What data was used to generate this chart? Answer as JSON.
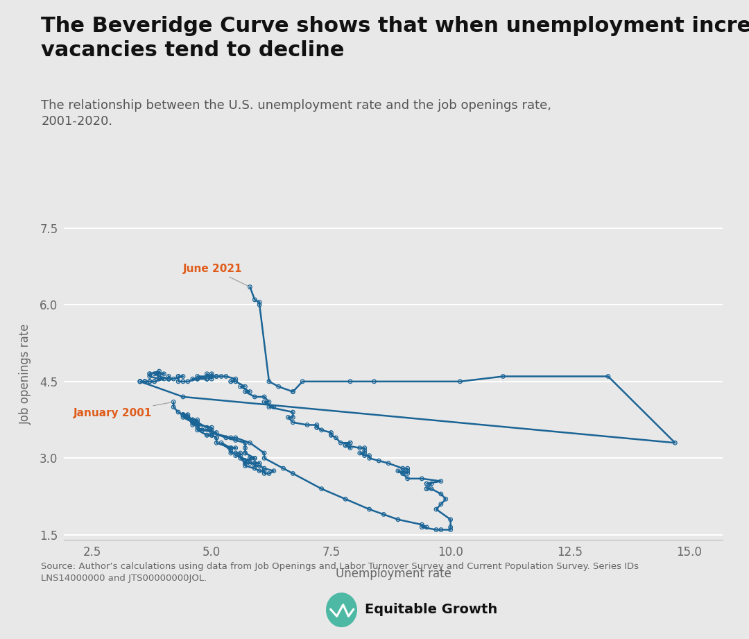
{
  "title_line1": "The Beveridge Curve shows that when unemployment increases, job",
  "title_line2": "vacancies tend to decline",
  "subtitle": "The relationship between the U.S. unemployment rate and the job openings rate,\n2001-2020.",
  "xlabel": "Unemployment rate",
  "ylabel": "Job openings rate",
  "source": "Source: Author’s calculations using data from Job Openings and Labor Turnover Survey and Current Population Survey. Series IDs\nLNS14000000 and JTS00000000JOL.",
  "background_color": "#e8e8e8",
  "line_color": "#1a6496",
  "scatter_edge_color": "#1a6496",
  "annotation_color": "#e05c1a",
  "xlim": [
    1.9,
    15.7
  ],
  "ylim": [
    1.4,
    7.9
  ],
  "xticks": [
    2.5,
    5.0,
    7.5,
    10.0,
    12.5,
    15.0
  ],
  "yticks": [
    1.5,
    3.0,
    4.5,
    6.0,
    7.5
  ],
  "title_fontsize": 22,
  "subtitle_fontsize": 13,
  "label_fontsize": 12,
  "tick_fontsize": 12,
  "jan2001_label": "January 2001",
  "june2021_label": "June 2021",
  "beveridge_data": [
    [
      4.2,
      4.1
    ],
    [
      4.2,
      4.0
    ],
    [
      4.3,
      3.9
    ],
    [
      4.5,
      3.8
    ],
    [
      4.4,
      3.85
    ],
    [
      4.5,
      3.8
    ],
    [
      4.6,
      3.75
    ],
    [
      4.9,
      3.6
    ],
    [
      5.0,
      3.5
    ],
    [
      5.3,
      3.4
    ],
    [
      5.5,
      3.35
    ],
    [
      5.7,
      3.3
    ],
    [
      5.7,
      3.2
    ],
    [
      5.7,
      3.1
    ],
    [
      5.7,
      3.1
    ],
    [
      5.9,
      3.0
    ],
    [
      5.8,
      3.0
    ],
    [
      5.8,
      3.0
    ],
    [
      5.9,
      3.0
    ],
    [
      5.7,
      2.95
    ],
    [
      5.7,
      2.95
    ],
    [
      5.7,
      2.9
    ],
    [
      5.9,
      2.9
    ],
    [
      6.0,
      2.9
    ],
    [
      5.8,
      2.9
    ],
    [
      5.9,
      2.9
    ],
    [
      5.9,
      2.85
    ],
    [
      6.0,
      2.85
    ],
    [
      6.1,
      2.8
    ],
    [
      6.3,
      2.75
    ],
    [
      6.2,
      2.7
    ],
    [
      6.1,
      2.7
    ],
    [
      6.1,
      2.75
    ],
    [
      6.0,
      2.75
    ],
    [
      5.9,
      2.8
    ],
    [
      5.7,
      2.85
    ],
    [
      5.7,
      2.9
    ],
    [
      5.6,
      3.0
    ],
    [
      5.8,
      2.95
    ],
    [
      5.5,
      3.05
    ],
    [
      5.6,
      3.05
    ],
    [
      5.6,
      3.1
    ],
    [
      5.5,
      3.1
    ],
    [
      5.4,
      3.1
    ],
    [
      5.4,
      3.2
    ],
    [
      5.5,
      3.2
    ],
    [
      5.4,
      3.2
    ],
    [
      5.4,
      3.15
    ],
    [
      5.2,
      3.3
    ],
    [
      5.4,
      3.2
    ],
    [
      5.1,
      3.3
    ],
    [
      5.1,
      3.4
    ],
    [
      5.1,
      3.4
    ],
    [
      5.0,
      3.45
    ],
    [
      5.0,
      3.45
    ],
    [
      4.9,
      3.45
    ],
    [
      5.0,
      3.45
    ],
    [
      5.0,
      3.45
    ],
    [
      5.0,
      3.45
    ],
    [
      4.9,
      3.45
    ],
    [
      4.7,
      3.55
    ],
    [
      4.8,
      3.55
    ],
    [
      4.7,
      3.6
    ],
    [
      4.7,
      3.65
    ],
    [
      4.6,
      3.65
    ],
    [
      4.6,
      3.7
    ],
    [
      4.7,
      3.65
    ],
    [
      4.7,
      3.65
    ],
    [
      4.6,
      3.7
    ],
    [
      4.4,
      3.8
    ],
    [
      4.5,
      3.8
    ],
    [
      4.4,
      3.85
    ],
    [
      4.6,
      3.75
    ],
    [
      4.5,
      3.8
    ],
    [
      4.4,
      3.85
    ],
    [
      4.5,
      3.85
    ],
    [
      4.4,
      3.85
    ],
    [
      4.6,
      3.75
    ],
    [
      4.7,
      3.75
    ],
    [
      4.6,
      3.7
    ],
    [
      4.7,
      3.7
    ],
    [
      4.7,
      3.7
    ],
    [
      4.7,
      3.65
    ],
    [
      5.0,
      3.6
    ],
    [
      5.0,
      3.55
    ],
    [
      4.8,
      3.55
    ],
    [
      5.1,
      3.5
    ],
    [
      5.0,
      3.5
    ],
    [
      5.4,
      3.4
    ],
    [
      5.5,
      3.4
    ],
    [
      5.8,
      3.3
    ],
    [
      6.1,
      3.1
    ],
    [
      6.1,
      3.0
    ],
    [
      6.5,
      2.8
    ],
    [
      6.7,
      2.7
    ],
    [
      7.3,
      2.4
    ],
    [
      7.8,
      2.2
    ],
    [
      8.3,
      2.0
    ],
    [
      8.6,
      1.9
    ],
    [
      8.9,
      1.8
    ],
    [
      9.4,
      1.7
    ],
    [
      9.5,
      1.65
    ],
    [
      9.4,
      1.65
    ],
    [
      9.7,
      1.6
    ],
    [
      9.8,
      1.6
    ],
    [
      10.0,
      1.6
    ],
    [
      10.0,
      1.65
    ],
    [
      10.0,
      1.8
    ],
    [
      9.7,
      2.0
    ],
    [
      9.8,
      2.1
    ],
    [
      9.9,
      2.2
    ],
    [
      9.8,
      2.3
    ],
    [
      9.6,
      2.4
    ],
    [
      9.5,
      2.4
    ],
    [
      9.5,
      2.4
    ],
    [
      9.6,
      2.5
    ],
    [
      9.5,
      2.5
    ],
    [
      9.5,
      2.5
    ],
    [
      9.8,
      2.55
    ],
    [
      9.4,
      2.6
    ],
    [
      9.1,
      2.6
    ],
    [
      9.0,
      2.7
    ],
    [
      8.9,
      2.75
    ],
    [
      9.0,
      2.7
    ],
    [
      9.0,
      2.75
    ],
    [
      9.1,
      2.7
    ],
    [
      9.1,
      2.75
    ],
    [
      9.1,
      2.75
    ],
    [
      9.1,
      2.8
    ],
    [
      9.0,
      2.8
    ],
    [
      8.7,
      2.9
    ],
    [
      8.5,
      2.95
    ],
    [
      8.3,
      3.0
    ],
    [
      8.3,
      3.05
    ],
    [
      8.2,
      3.05
    ],
    [
      8.1,
      3.1
    ],
    [
      8.2,
      3.1
    ],
    [
      8.2,
      3.15
    ],
    [
      8.2,
      3.2
    ],
    [
      8.1,
      3.2
    ],
    [
      7.8,
      3.25
    ],
    [
      7.9,
      3.2
    ],
    [
      7.8,
      3.25
    ],
    [
      7.9,
      3.3
    ],
    [
      7.9,
      3.3
    ],
    [
      7.7,
      3.3
    ],
    [
      7.6,
      3.4
    ],
    [
      7.5,
      3.45
    ],
    [
      7.5,
      3.45
    ],
    [
      7.5,
      3.5
    ],
    [
      7.3,
      3.55
    ],
    [
      7.2,
      3.6
    ],
    [
      7.2,
      3.6
    ],
    [
      7.2,
      3.65
    ],
    [
      7.0,
      3.65
    ],
    [
      6.7,
      3.7
    ],
    [
      6.6,
      3.8
    ],
    [
      6.7,
      3.8
    ],
    [
      6.7,
      3.9
    ],
    [
      6.2,
      4.0
    ],
    [
      6.3,
      4.0
    ],
    [
      6.1,
      4.1
    ],
    [
      6.2,
      4.1
    ],
    [
      6.1,
      4.2
    ],
    [
      5.9,
      4.2
    ],
    [
      5.7,
      4.3
    ],
    [
      5.8,
      4.3
    ],
    [
      5.6,
      4.4
    ],
    [
      5.7,
      4.4
    ],
    [
      5.5,
      4.5
    ],
    [
      5.4,
      4.5
    ],
    [
      5.4,
      4.5
    ],
    [
      5.5,
      4.55
    ],
    [
      5.3,
      4.6
    ],
    [
      5.2,
      4.6
    ],
    [
      5.1,
      4.6
    ],
    [
      5.1,
      4.6
    ],
    [
      5.0,
      4.6
    ],
    [
      5.0,
      4.65
    ],
    [
      5.0,
      4.6
    ],
    [
      4.9,
      4.6
    ],
    [
      4.9,
      4.65
    ],
    [
      5.0,
      4.55
    ],
    [
      5.0,
      4.6
    ],
    [
      4.7,
      4.6
    ],
    [
      4.9,
      4.55
    ],
    [
      4.9,
      4.55
    ],
    [
      4.9,
      4.55
    ],
    [
      4.9,
      4.55
    ],
    [
      4.9,
      4.55
    ],
    [
      4.6,
      4.55
    ],
    [
      4.7,
      4.55
    ],
    [
      4.7,
      4.55
    ],
    [
      4.7,
      4.55
    ],
    [
      4.5,
      4.5
    ],
    [
      4.4,
      4.5
    ],
    [
      4.3,
      4.5
    ],
    [
      4.3,
      4.6
    ],
    [
      4.3,
      4.6
    ],
    [
      4.4,
      4.6
    ],
    [
      4.2,
      4.55
    ],
    [
      4.1,
      4.55
    ],
    [
      4.1,
      4.6
    ],
    [
      4.1,
      4.55
    ],
    [
      4.1,
      4.55
    ],
    [
      4.1,
      4.55
    ],
    [
      4.1,
      4.55
    ],
    [
      3.9,
      4.6
    ],
    [
      3.8,
      4.65
    ],
    [
      4.0,
      4.65
    ],
    [
      3.9,
      4.65
    ],
    [
      3.9,
      4.7
    ],
    [
      3.7,
      4.65
    ],
    [
      3.7,
      4.65
    ],
    [
      3.7,
      4.6
    ],
    [
      3.9,
      4.55
    ],
    [
      4.0,
      4.55
    ],
    [
      3.8,
      4.5
    ],
    [
      3.8,
      4.5
    ],
    [
      3.6,
      4.5
    ],
    [
      3.6,
      4.5
    ],
    [
      3.7,
      4.5
    ],
    [
      3.7,
      4.5
    ],
    [
      3.7,
      4.5
    ],
    [
      3.5,
      4.5
    ],
    [
      3.6,
      4.5
    ],
    [
      3.5,
      4.5
    ],
    [
      3.5,
      4.5
    ],
    [
      3.5,
      4.5
    ],
    [
      3.5,
      4.5
    ],
    [
      4.4,
      4.2
    ],
    [
      14.7,
      3.3
    ],
    [
      13.3,
      4.6
    ],
    [
      11.1,
      4.6
    ],
    [
      10.2,
      4.5
    ],
    [
      8.4,
      4.5
    ],
    [
      7.9,
      4.5
    ],
    [
      6.9,
      4.5
    ],
    [
      6.7,
      4.3
    ],
    [
      6.7,
      4.3
    ],
    [
      6.4,
      4.4
    ],
    [
      6.2,
      4.5
    ],
    [
      6.0,
      6.0
    ],
    [
      6.0,
      6.05
    ],
    [
      5.9,
      6.1
    ],
    [
      5.8,
      6.35
    ]
  ]
}
